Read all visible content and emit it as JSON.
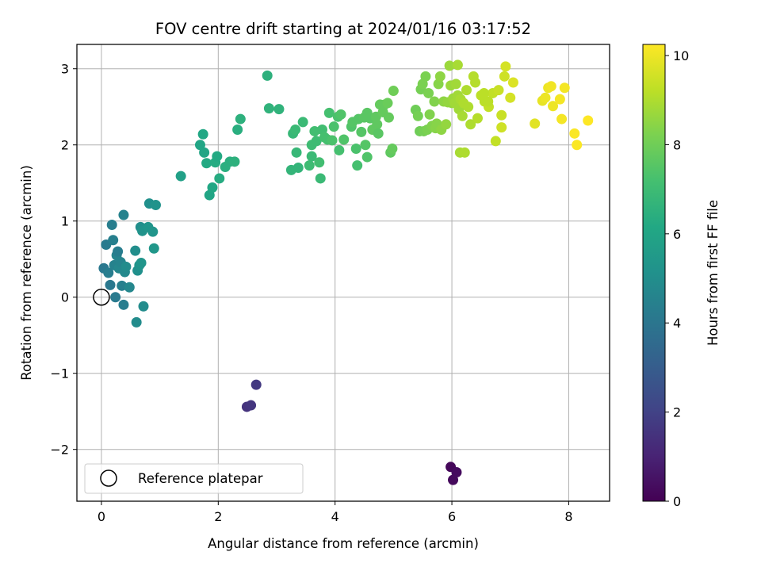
{
  "chart_data": {
    "type": "scatter",
    "title": "FOV centre drift starting at 2024/01/16 03:17:52",
    "xlabel": "Angular distance from reference (arcmin)",
    "ylabel": "Rotation from reference (arcmin)",
    "xlim": [
      -0.42,
      8.7
    ],
    "ylim": [
      -2.68,
      3.32
    ],
    "xticks": [
      0,
      2,
      4,
      6,
      8
    ],
    "yticks": [
      -2,
      -1,
      0,
      1,
      2,
      3
    ],
    "xtick_labels": [
      "0",
      "2",
      "4",
      "6",
      "8"
    ],
    "ytick_labels": [
      "−2",
      "−1",
      "0",
      "1",
      "2",
      "3"
    ],
    "grid": true,
    "colorbar": {
      "label": "Hours from first FF file",
      "range": [
        0,
        10.25
      ],
      "ticks": [
        0,
        2,
        4,
        6,
        8,
        10
      ],
      "tick_labels": [
        "0",
        "2",
        "4",
        "6",
        "8",
        "10"
      ],
      "colormap": "viridis"
    },
    "legend": {
      "placement": "lower-left",
      "entries": [
        "Reference platepar"
      ]
    },
    "reference_point": {
      "x": 0,
      "y": 0
    },
    "points": [
      [
        5.98,
        -2.23,
        0.2
      ],
      [
        6.02,
        -2.4,
        0.25
      ],
      [
        6.08,
        -2.3,
        0.3
      ],
      [
        2.49,
        -1.44,
        1.5
      ],
      [
        2.56,
        -1.42,
        1.6
      ],
      [
        2.65,
        -1.15,
        1.7
      ],
      [
        0.04,
        0.38,
        4.1
      ],
      [
        0.08,
        0.69,
        4.2
      ],
      [
        0.12,
        0.32,
        4.3
      ],
      [
        0.15,
        0.16,
        4.1
      ],
      [
        0.18,
        0.95,
        4.35
      ],
      [
        0.2,
        0.75,
        4.4
      ],
      [
        0.22,
        0.42,
        4.5
      ],
      [
        0.24,
        0.0,
        4.2
      ],
      [
        0.26,
        0.55,
        4.6
      ],
      [
        0.28,
        0.6,
        4.3
      ],
      [
        0.3,
        0.38,
        4.7
      ],
      [
        0.33,
        0.46,
        4.6
      ],
      [
        0.35,
        0.15,
        4.4
      ],
      [
        0.38,
        -0.1,
        4.3
      ],
      [
        0.38,
        1.08,
        4.5
      ],
      [
        0.4,
        0.33,
        4.8
      ],
      [
        0.42,
        0.4,
        4.9
      ],
      [
        0.48,
        0.13,
        4.7
      ],
      [
        0.58,
        0.61,
        5.0
      ],
      [
        0.6,
        -0.33,
        4.9
      ],
      [
        0.62,
        0.35,
        5.1
      ],
      [
        0.65,
        0.42,
        5.2
      ],
      [
        0.67,
        0.92,
        5.0
      ],
      [
        0.68,
        0.45,
        5.3
      ],
      [
        0.7,
        0.87,
        5.2
      ],
      [
        0.72,
        -0.12,
        4.9
      ],
      [
        0.8,
        0.92,
        5.3
      ],
      [
        0.82,
        1.23,
        5.1
      ],
      [
        0.88,
        0.86,
        5.3
      ],
      [
        0.9,
        0.64,
        5.4
      ],
      [
        0.93,
        1.21,
        5.2
      ],
      [
        1.36,
        1.59,
        5.8
      ],
      [
        1.69,
        2.0,
        6.0
      ],
      [
        1.74,
        2.14,
        6.1
      ],
      [
        1.76,
        1.9,
        6.0
      ],
      [
        1.8,
        1.76,
        6.2
      ],
      [
        1.85,
        1.34,
        6.0
      ],
      [
        1.9,
        1.44,
        6.1
      ],
      [
        1.95,
        1.77,
        6.3
      ],
      [
        1.98,
        1.85,
        6.2
      ],
      [
        2.02,
        1.56,
        6.3
      ],
      [
        2.12,
        1.71,
        6.4
      ],
      [
        2.2,
        1.78,
        6.4
      ],
      [
        2.28,
        1.78,
        6.5
      ],
      [
        2.33,
        2.2,
        6.4
      ],
      [
        2.38,
        2.34,
        6.5
      ],
      [
        2.84,
        2.91,
        6.5
      ],
      [
        2.87,
        2.48,
        6.6
      ],
      [
        3.04,
        2.47,
        6.6
      ],
      [
        3.25,
        1.67,
        6.7
      ],
      [
        3.28,
        2.15,
        6.8
      ],
      [
        3.32,
        2.2,
        6.9
      ],
      [
        3.34,
        1.9,
        6.8
      ],
      [
        3.37,
        1.7,
        6.7
      ],
      [
        3.45,
        2.3,
        6.9
      ],
      [
        3.56,
        1.73,
        7.0
      ],
      [
        3.6,
        2.0,
        7.0
      ],
      [
        3.6,
        1.85,
        6.9
      ],
      [
        3.65,
        2.18,
        7.1
      ],
      [
        3.68,
        2.05,
        7.0
      ],
      [
        3.73,
        1.77,
        7.1
      ],
      [
        3.75,
        1.56,
        6.9
      ],
      [
        3.78,
        2.2,
        7.1
      ],
      [
        3.82,
        2.1,
        7.2
      ],
      [
        3.87,
        2.07,
        7.2
      ],
      [
        3.9,
        2.42,
        7.2
      ],
      [
        3.95,
        2.06,
        7.3
      ],
      [
        3.98,
        2.24,
        7.3
      ],
      [
        4.05,
        2.37,
        7.3
      ],
      [
        4.07,
        1.93,
        7.2
      ],
      [
        4.1,
        2.4,
        7.4
      ],
      [
        4.15,
        2.07,
        7.4
      ],
      [
        4.28,
        2.24,
        7.4
      ],
      [
        4.3,
        2.3,
        7.5
      ],
      [
        4.36,
        1.95,
        7.3
      ],
      [
        4.38,
        1.73,
        7.2
      ],
      [
        4.4,
        2.34,
        7.5
      ],
      [
        4.45,
        2.17,
        7.5
      ],
      [
        4.5,
        2.36,
        7.6
      ],
      [
        4.52,
        2.0,
        7.5
      ],
      [
        4.55,
        2.42,
        7.6
      ],
      [
        4.55,
        1.84,
        7.4
      ],
      [
        4.6,
        2.35,
        7.6
      ],
      [
        4.64,
        2.2,
        7.7
      ],
      [
        4.7,
        2.37,
        7.7
      ],
      [
        4.72,
        2.27,
        7.7
      ],
      [
        4.74,
        2.15,
        7.6
      ],
      [
        4.77,
        2.53,
        7.8
      ],
      [
        4.82,
        2.43,
        7.8
      ],
      [
        4.85,
        2.53,
        7.8
      ],
      [
        4.9,
        2.55,
        7.9
      ],
      [
        4.92,
        2.36,
        7.8
      ],
      [
        4.95,
        1.9,
        7.7
      ],
      [
        4.98,
        1.95,
        7.8
      ],
      [
        5.0,
        2.71,
        8.0
      ],
      [
        5.38,
        2.46,
        8.0
      ],
      [
        5.42,
        2.38,
        8.1
      ],
      [
        5.45,
        2.18,
        8.0
      ],
      [
        5.47,
        2.73,
        8.1
      ],
      [
        5.5,
        2.8,
        8.2
      ],
      [
        5.52,
        2.18,
        8.1
      ],
      [
        5.55,
        2.9,
        8.2
      ],
      [
        5.58,
        2.2,
        8.2
      ],
      [
        5.6,
        2.68,
        8.2
      ],
      [
        5.62,
        2.4,
        8.3
      ],
      [
        5.66,
        2.25,
        8.3
      ],
      [
        5.7,
        2.57,
        8.3
      ],
      [
        5.72,
        2.22,
        8.4
      ],
      [
        5.74,
        2.28,
        8.4
      ],
      [
        5.77,
        2.8,
        8.4
      ],
      [
        5.8,
        2.9,
        8.5
      ],
      [
        5.82,
        2.2,
        8.5
      ],
      [
        5.86,
        2.57,
        8.5
      ],
      [
        5.9,
        2.27,
        8.6
      ],
      [
        5.93,
        2.56,
        8.6
      ],
      [
        5.96,
        3.04,
        8.7
      ],
      [
        5.98,
        2.78,
        8.7
      ],
      [
        6.0,
        2.55,
        8.6
      ],
      [
        6.02,
        2.61,
        8.7
      ],
      [
        6.05,
        2.55,
        8.8
      ],
      [
        6.07,
        2.8,
        8.8
      ],
      [
        6.1,
        2.65,
        8.8
      ],
      [
        6.12,
        2.47,
        8.8
      ],
      [
        6.14,
        1.9,
        8.9
      ],
      [
        6.15,
        2.6,
        8.9
      ],
      [
        6.18,
        2.38,
        8.9
      ],
      [
        6.2,
        2.55,
        9.0
      ],
      [
        6.22,
        1.9,
        9.0
      ],
      [
        6.25,
        2.72,
        9.0
      ],
      [
        6.28,
        2.5,
        9.0
      ],
      [
        6.32,
        2.27,
        9.0
      ],
      [
        6.37,
        2.9,
        9.1
      ],
      [
        6.4,
        2.82,
        9.1
      ],
      [
        6.44,
        2.35,
        9.1
      ],
      [
        6.5,
        2.65,
        9.2
      ],
      [
        6.56,
        2.57,
        9.2
      ],
      [
        6.63,
        2.5,
        9.3
      ],
      [
        6.7,
        2.68,
        9.3
      ],
      [
        6.75,
        2.05,
        9.3
      ],
      [
        6.8,
        2.72,
        9.4
      ],
      [
        6.85,
        2.39,
        9.4
      ],
      [
        6.85,
        2.23,
        9.5
      ],
      [
        6.9,
        2.9,
        9.5
      ],
      [
        6.92,
        3.03,
        9.6
      ],
      [
        7.0,
        2.62,
        9.6
      ],
      [
        7.05,
        2.82,
        9.7
      ],
      [
        6.62,
        2.57,
        9.2
      ],
      [
        6.55,
        2.68,
        9.2
      ],
      [
        6.1,
        3.05,
        8.9
      ],
      [
        7.42,
        2.28,
        9.8
      ],
      [
        7.55,
        2.58,
        9.9
      ],
      [
        7.6,
        2.62,
        10.0
      ],
      [
        7.65,
        2.75,
        10.0
      ],
      [
        7.7,
        2.77,
        10.05
      ],
      [
        7.73,
        2.51,
        10.0
      ],
      [
        7.85,
        2.6,
        10.1
      ],
      [
        7.88,
        2.34,
        10.1
      ],
      [
        7.93,
        2.75,
        10.1
      ],
      [
        8.1,
        2.15,
        10.2
      ],
      [
        8.14,
        2.0,
        10.2
      ],
      [
        8.33,
        2.32,
        10.25
      ]
    ]
  }
}
